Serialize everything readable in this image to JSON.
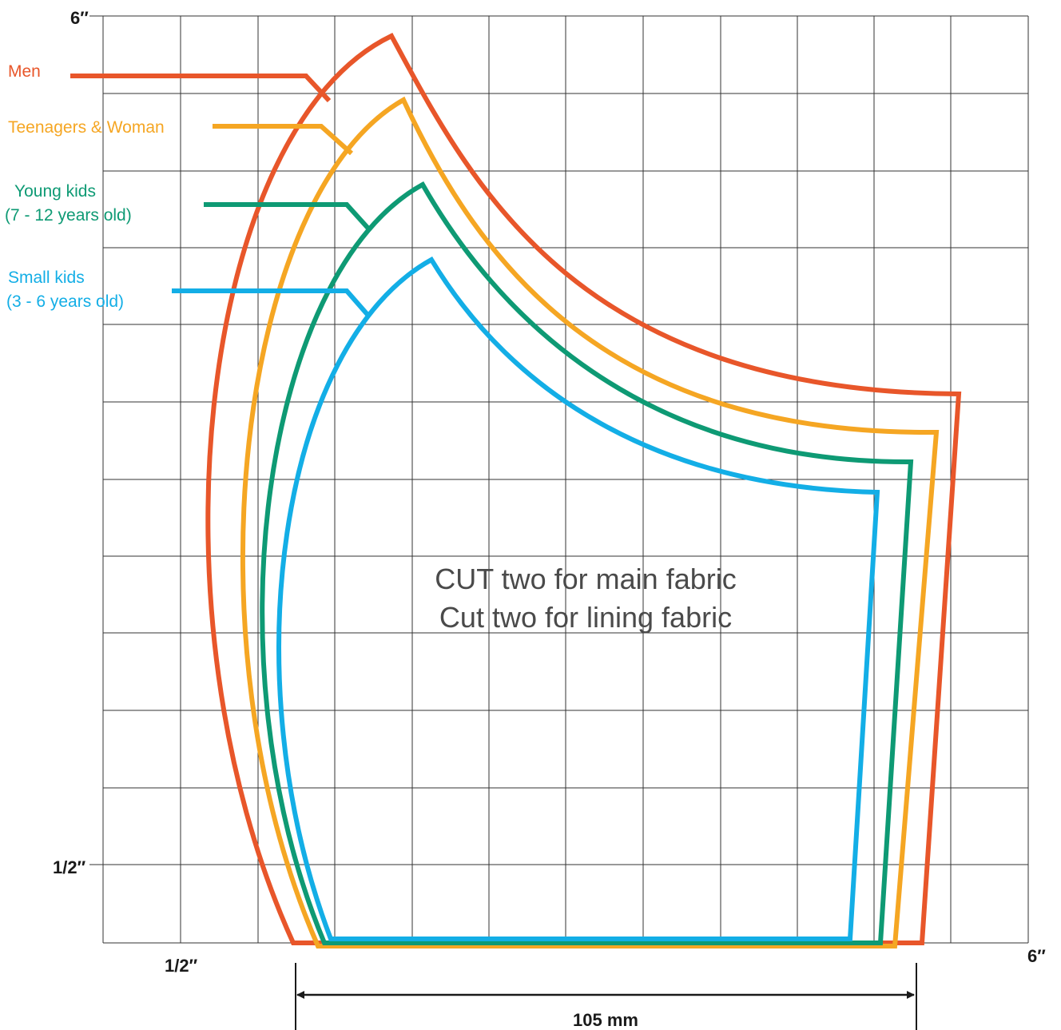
{
  "axis": {
    "y_top": "6″",
    "y_half": "1/2″",
    "x_half": "1/2″",
    "x_right": "6″"
  },
  "legend": [
    {
      "label": "Men",
      "color": "#E8562A"
    },
    {
      "label": "Teenagers & Woman",
      "color": "#F5A623"
    },
    {
      "label": "Young kids",
      "label2": "(7 - 12 years old)",
      "color": "#0E9A74"
    },
    {
      "label": "Small kids",
      "label2": "(3 - 6 years old)",
      "color": "#13AEE6"
    }
  ],
  "note": {
    "line1": "CUT two for main fabric",
    "line2": "Cut two for lining fabric"
  },
  "dimension": {
    "label": "105 mm"
  }
}
